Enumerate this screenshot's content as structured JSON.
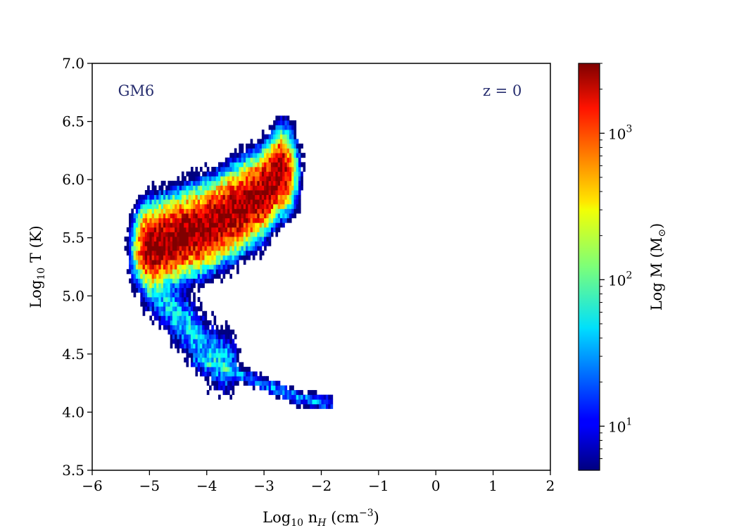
{
  "chart_data": {
    "type": "heatmap",
    "title": "",
    "xlabel": {
      "base": "Log",
      "sub": "10",
      "text": " n",
      "italic_sub": "H",
      "unit": " (cm",
      "sup": "−3",
      "close": ")"
    },
    "ylabel": {
      "base": "Log",
      "sub": "10",
      "text": " T (K)"
    },
    "xlim": [
      -6,
      2
    ],
    "ylim": [
      3.5,
      7.0
    ],
    "x_ticks": [
      -6,
      -5,
      -4,
      -3,
      -2,
      -1,
      0,
      1,
      2
    ],
    "x_tick_labels": [
      "−6",
      "−5",
      "−4",
      "−3",
      "−2",
      "−1",
      "0",
      "1",
      "2"
    ],
    "y_ticks": [
      3.5,
      4.0,
      4.5,
      5.0,
      5.5,
      6.0,
      6.5,
      7.0
    ],
    "y_tick_labels": [
      "3.5",
      "4.0",
      "4.5",
      "5.0",
      "5.5",
      "6.0",
      "6.5",
      "7.0"
    ],
    "annotations": [
      {
        "text": "GM6",
        "x": -5.55,
        "y": 6.72,
        "color": "#262d6e",
        "align": "left"
      },
      {
        "text": "z = 0",
        "x": 1.5,
        "y": 6.72,
        "color": "#262d6e",
        "align": "right"
      }
    ],
    "colorbar": {
      "label": {
        "text": "Log M (M",
        "sym": "⊙",
        "close": ")"
      },
      "scale": "log",
      "range": [
        5,
        3000
      ],
      "colormap": "jet",
      "major_ticks": [
        10,
        100,
        1000
      ],
      "major_tick_labels": [
        {
          "base": "10",
          "exp": "1"
        },
        {
          "base": "10",
          "exp": "2"
        },
        {
          "base": "10",
          "exp": "3"
        }
      ],
      "minor_ticks": [
        6,
        7,
        8,
        9,
        20,
        30,
        40,
        50,
        60,
        70,
        80,
        90,
        200,
        300,
        400,
        500,
        600,
        700,
        800,
        900,
        2000,
        3000
      ]
    },
    "distribution": {
      "bin_size": 0.04,
      "peak_mass": 3000,
      "components": [
        {
          "name": "hot-halo-ridge",
          "path": [
            [
              -5.0,
              5.4
            ],
            [
              -4.6,
              5.47
            ],
            [
              -4.0,
              5.58
            ],
            [
              -3.5,
              5.72
            ],
            [
              -3.0,
              5.88
            ],
            [
              -2.75,
              6.05
            ]
          ],
          "width_T": 0.13,
          "peak": 3000
        },
        {
          "name": "cool-diffuse-tail",
          "path": [
            [
              -4.9,
              5.05
            ],
            [
              -4.6,
              4.85
            ],
            [
              -4.3,
              4.7
            ],
            [
              -4.0,
              4.5
            ],
            [
              -3.7,
              4.4
            ]
          ],
          "width_T": 0.12,
          "peak": 40
        },
        {
          "name": "cold-dense-branch",
          "path": [
            [
              -4.1,
              4.42
            ],
            [
              -3.5,
              4.32
            ],
            [
              -2.9,
              4.2
            ],
            [
              -2.4,
              4.1
            ],
            [
              -1.95,
              4.06
            ]
          ],
          "width_T": 0.03,
          "peak": 25
        }
      ]
    }
  }
}
